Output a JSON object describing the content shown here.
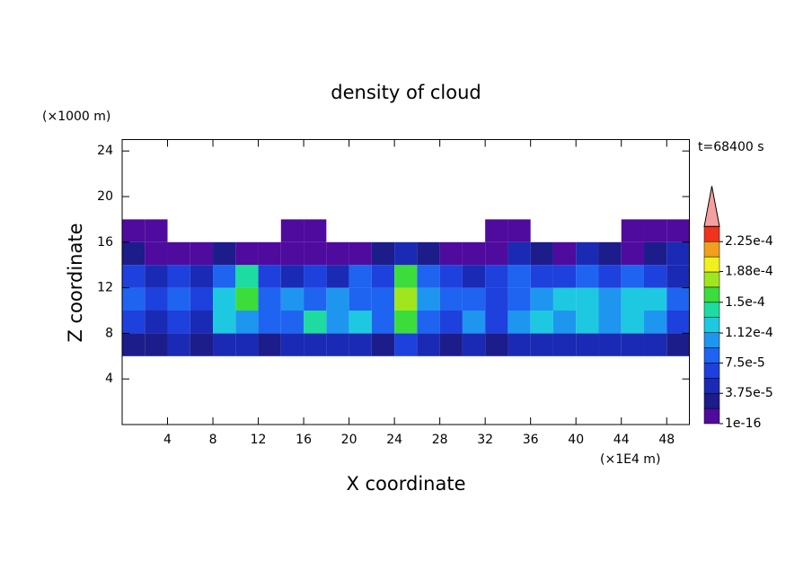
{
  "chart_data": {
    "type": "heatmap",
    "title": "density of cloud",
    "xlabel": "X coordinate",
    "ylabel": "Z coordinate",
    "x_unit": "(×1E4 m)",
    "y_unit": "(×1000 m)",
    "annotation": "t=68400 s",
    "xlim": [
      0,
      50
    ],
    "xticks": [
      4,
      8,
      12,
      16,
      20,
      24,
      28,
      32,
      36,
      40,
      44,
      48
    ],
    "ylim": [
      0,
      25
    ],
    "yticks": [
      4,
      8,
      12,
      16,
      20,
      24
    ],
    "x": [
      1,
      3,
      5,
      7,
      9,
      11,
      13,
      15,
      17,
      19,
      21,
      23,
      25,
      27,
      29,
      31,
      33,
      35,
      37,
      39,
      41,
      43,
      45,
      47,
      49
    ],
    "y": [
      7,
      9,
      11,
      13,
      15,
      17
    ],
    "z": [
      [
        3e-05,
        3e-05,
        4e-05,
        2e-05,
        5e-05,
        4e-05,
        3e-05,
        4e-05,
        5e-05,
        4e-05,
        5e-05,
        3e-05,
        6e-05,
        4e-05,
        3e-05,
        5e-05,
        3e-05,
        4e-05,
        5e-05,
        4e-05,
        5e-05,
        4e-05,
        5e-05,
        4e-05,
        3e-05
      ],
      [
        7e-05,
        5e-05,
        6e-05,
        4e-05,
        0.00012,
        0.0001,
        8e-05,
        9e-05,
        0.00014,
        0.0001,
        0.00013,
        9e-05,
        0.00015,
        8e-05,
        7e-05,
        0.00011,
        6e-05,
        0.0001,
        0.00012,
        0.00011,
        0.00012,
        0.0001,
        0.00013,
        0.00011,
        7e-05
      ],
      [
        8e-05,
        6e-05,
        8e-05,
        6e-05,
        0.00013,
        0.00016,
        8e-05,
        0.0001,
        9e-05,
        0.0001,
        9e-05,
        8e-05,
        0.00018,
        0.0001,
        9e-05,
        9e-05,
        6e-05,
        8e-05,
        0.0001,
        0.00012,
        0.00013,
        0.0001,
        0.00012,
        0.00013,
        8e-05
      ],
      [
        6e-05,
        4e-05,
        6e-05,
        4e-05,
        8e-05,
        0.00014,
        6e-05,
        4e-05,
        6e-05,
        4e-05,
        8e-05,
        6e-05,
        0.00016,
        8e-05,
        6e-05,
        4e-05,
        6e-05,
        8e-05,
        6e-05,
        6e-05,
        9e-05,
        6e-05,
        8e-05,
        6e-05,
        4e-05
      ],
      [
        2e-05,
        1e-16,
        1e-16,
        1e-16,
        2e-05,
        1e-16,
        1e-16,
        1e-16,
        1e-16,
        1e-16,
        1e-16,
        2e-05,
        4e-05,
        2e-05,
        1e-16,
        1e-16,
        1e-16,
        4e-05,
        2e-05,
        1e-16,
        4e-05,
        2e-05,
        1e-16,
        2e-05,
        4e-05
      ],
      [
        1e-16,
        1e-16,
        null,
        null,
        null,
        null,
        null,
        1e-16,
        1e-16,
        null,
        null,
        null,
        null,
        null,
        null,
        null,
        1e-16,
        1e-16,
        null,
        null,
        null,
        null,
        1e-16,
        1e-16,
        1e-16
      ]
    ],
    "levels": [
      1e-16,
      1.875e-05,
      3.75e-05,
      5.625e-05,
      7.5e-05,
      9.375e-05,
      0.0001125,
      0.00013125,
      0.00015,
      0.00016875,
      0.0001875,
      0.00020625,
      0.000225,
      0.00024375
    ],
    "level_colors": [
      "#4f0a9e",
      "#1c1c8a",
      "#1a2ab4",
      "#1e40dc",
      "#1e64f0",
      "#1e96f0",
      "#1ec8e0",
      "#1edca0",
      "#3cdc3c",
      "#a0e61e",
      "#f0f01e",
      "#f0a01e",
      "#f0321e"
    ],
    "extend_color": "#f4a0a0",
    "colorbar_ticks": [
      1e-16,
      {
        "value": 3.75e-05,
        "label": "3.75e-5"
      },
      {
        "value": 7.5e-05,
        "label": "7.5e-5"
      },
      {
        "value": 0.000112,
        "label": "1.12e-4"
      },
      {
        "value": 0.00015,
        "label": "1.5e-4"
      },
      {
        "value": 0.000188,
        "label": "1.88e-4"
      },
      {
        "value": 0.000225,
        "label": "2.25e-4"
      }
    ]
  }
}
